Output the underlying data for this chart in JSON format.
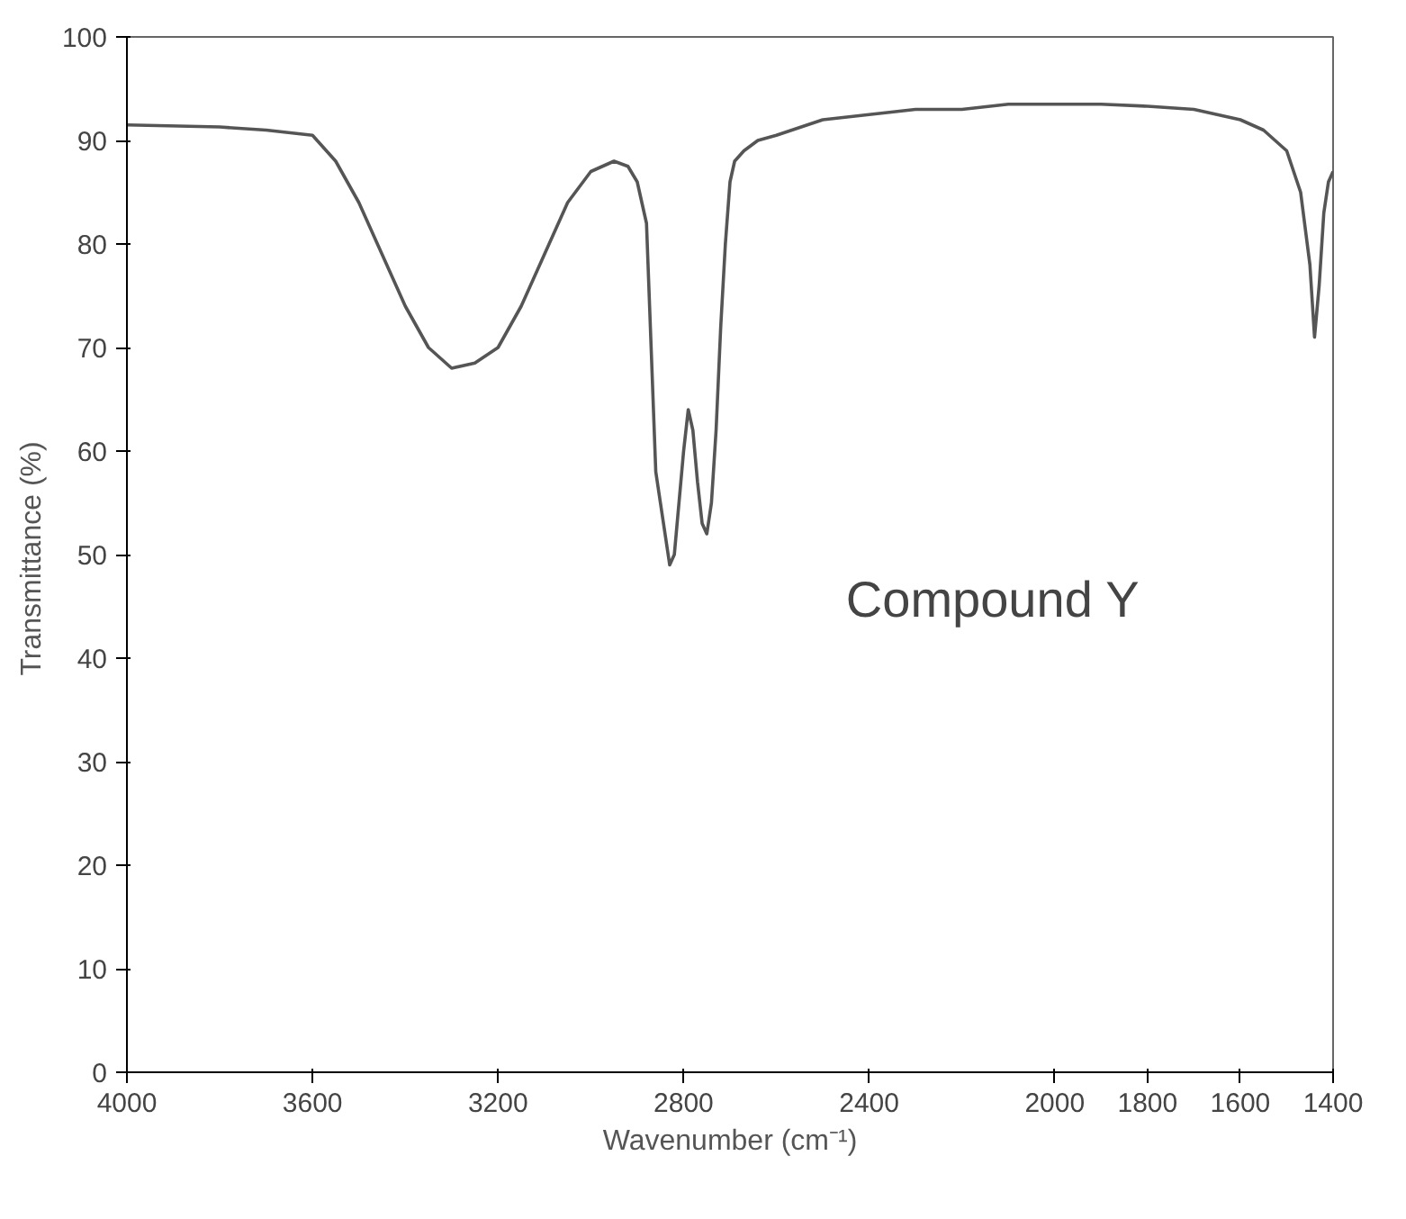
{
  "chart_data": {
    "type": "line",
    "xlabel": "Wavenumber (cm⁻¹)",
    "ylabel": "Transmittance  (%)",
    "xlim": [
      4000,
      1400
    ],
    "xticks": [
      4000,
      3600,
      3200,
      2800,
      2400,
      2000,
      1800,
      1600,
      1400
    ],
    "ylim": [
      0,
      100
    ],
    "yticks": [
      0,
      10,
      20,
      30,
      40,
      50,
      60,
      70,
      80,
      90,
      100
    ],
    "grid": false,
    "annotations": [
      "Compound Y"
    ],
    "series": [
      {
        "color": "#555555",
        "x": [
          4000,
          3800,
          3700,
          3600,
          3550,
          3500,
          3450,
          3400,
          3350,
          3300,
          3250,
          3200,
          3150,
          3100,
          3050,
          3000,
          2950,
          2920,
          2900,
          2880,
          2870,
          2860,
          2850,
          2840,
          2830,
          2820,
          2810,
          2800,
          2790,
          2780,
          2770,
          2760,
          2750,
          2740,
          2730,
          2720,
          2710,
          2700,
          2690,
          2670,
          2640,
          2600,
          2500,
          2400,
          2300,
          2200,
          2100,
          2000,
          1900,
          1800,
          1700,
          1600,
          1550,
          1500,
          1470,
          1450,
          1440,
          1430,
          1420,
          1410,
          1400
        ],
        "values": [
          91.5,
          91.3,
          91,
          90.5,
          88,
          84,
          79,
          74,
          70,
          68,
          68.5,
          70,
          74,
          79,
          84,
          87,
          88,
          87.5,
          86,
          82,
          70,
          58,
          55,
          52,
          49,
          50,
          55,
          60,
          64,
          62,
          57,
          53,
          52,
          55,
          62,
          72,
          80,
          86,
          88,
          89,
          90,
          90.5,
          92,
          92.5,
          93,
          93,
          93.5,
          93.5,
          93.5,
          93.3,
          93,
          92,
          91,
          89,
          85,
          78,
          71,
          76,
          83,
          86,
          87
        ]
      }
    ]
  }
}
